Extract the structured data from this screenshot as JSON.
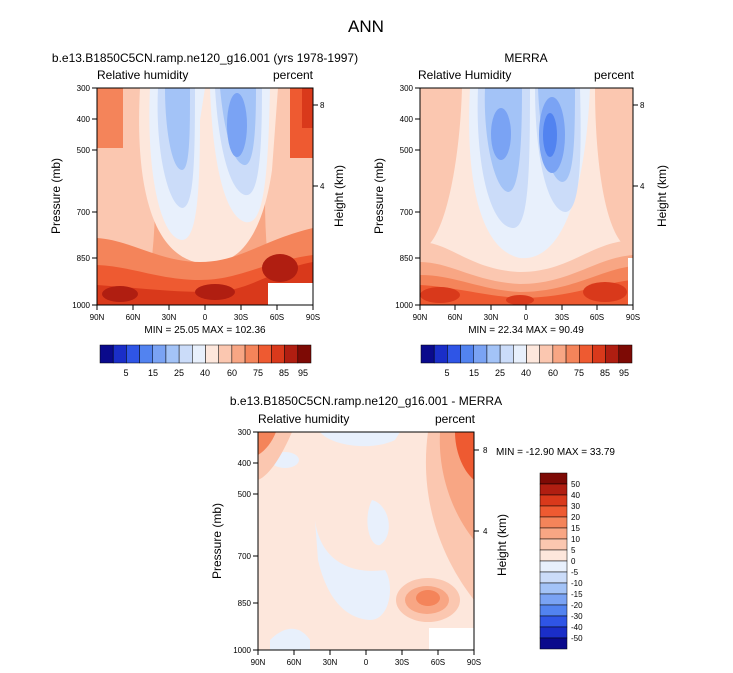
{
  "page": {
    "title": "ANN"
  },
  "chart_data": [
    {
      "id": "model",
      "type": "heatmap",
      "title": "b.e13.B1850C5CN.ramp.ne120_g16.001 (yrs 1978-1997)",
      "left_label": "Relative humidity",
      "right_label": "percent",
      "ylabel": "Pressure (mb)",
      "y2label": "Height (km)",
      "x_ticks": [
        "90N",
        "60N",
        "30N",
        "0",
        "30S",
        "60S",
        "90S"
      ],
      "y_ticks": [
        "300",
        "400",
        "500",
        "700",
        "850",
        "1000"
      ],
      "y2_ticks": [
        "8",
        "4"
      ],
      "stats": "MIN = 25.05  MAX = 102.36",
      "colorbar": {
        "orientation": "horizontal",
        "labels": [
          "5",
          "15",
          "25",
          "40",
          "60",
          "75",
          "85",
          "95"
        ]
      }
    },
    {
      "id": "obs",
      "type": "heatmap",
      "title": "MERRA",
      "left_label": "Relative Humidity",
      "right_label": "percent",
      "ylabel": "Pressure (mb)",
      "y2label": "Height (km)",
      "x_ticks": [
        "90N",
        "60N",
        "30N",
        "0",
        "30S",
        "60S",
        "90S"
      ],
      "y_ticks": [
        "300",
        "400",
        "500",
        "700",
        "850",
        "1000"
      ],
      "y2_ticks": [
        "8",
        "4"
      ],
      "stats": "MIN = 22.34  MAX = 90.49",
      "colorbar": {
        "orientation": "horizontal",
        "labels": [
          "5",
          "15",
          "25",
          "40",
          "60",
          "75",
          "85",
          "95"
        ]
      }
    },
    {
      "id": "diff",
      "type": "heatmap",
      "title": "b.e13.B1850C5CN.ramp.ne120_g16.001 - MERRA",
      "left_label": "Relative humidity",
      "right_label": "percent",
      "ylabel": "Pressure (mb)",
      "y2label": "Height (km)",
      "x_ticks": [
        "90N",
        "60N",
        "30N",
        "0",
        "30S",
        "60S",
        "90S"
      ],
      "y_ticks": [
        "300",
        "400",
        "500",
        "700",
        "850",
        "1000"
      ],
      "y2_ticks": [
        "8",
        "4"
      ],
      "stats": "MIN = -12.90   MAX =  33.79",
      "colorbar": {
        "orientation": "vertical",
        "labels": [
          "50",
          "40",
          "30",
          "20",
          "15",
          "10",
          "5",
          "0",
          "-5",
          "-10",
          "-15",
          "-20",
          "-30",
          "-40",
          "-50"
        ]
      }
    }
  ],
  "colors": {
    "abs_scale": [
      "#0a0a8c",
      "#1a2ec8",
      "#2f55e6",
      "#5283f0",
      "#7aa3f4",
      "#a3c3f7",
      "#cbdcf9",
      "#e8f0fc",
      "#fde7dc",
      "#fbc7b0",
      "#f8a684",
      "#f4845a",
      "#ee5a31",
      "#d9391b",
      "#b01e11",
      "#7d0a05"
    ],
    "diff_scale": [
      "#7d0a05",
      "#b01e11",
      "#d9391b",
      "#ee5a31",
      "#f4845a",
      "#f8a684",
      "#fbc7b0",
      "#fde7dc",
      "#e8f0fc",
      "#cbdcf9",
      "#a3c3f7",
      "#7aa3f4",
      "#5283f0",
      "#2f55e6",
      "#1a2ec8",
      "#0a0a8c"
    ]
  }
}
